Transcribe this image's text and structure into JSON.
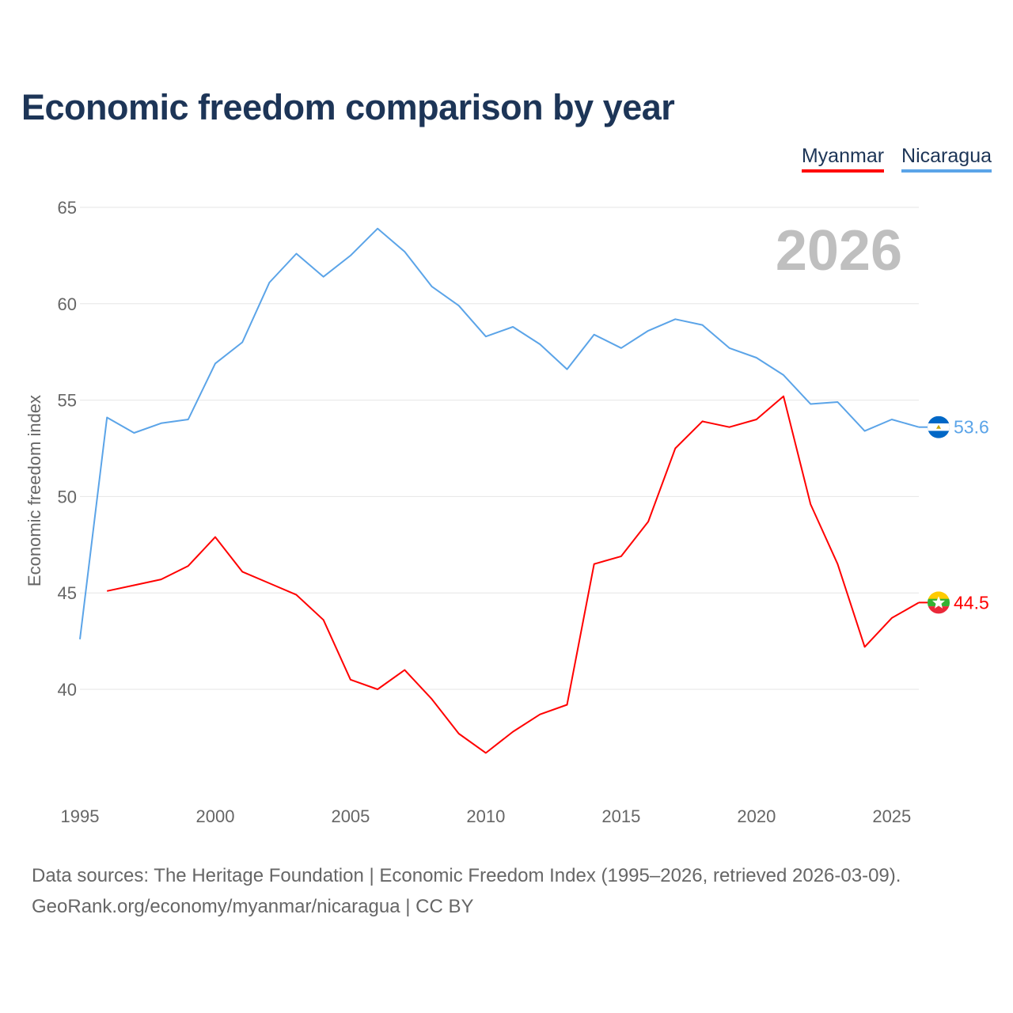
{
  "chart_data": {
    "type": "line",
    "title": "Economic freedom comparison by year",
    "xlabel": "",
    "ylabel": "Economic freedom index",
    "xlim": [
      1995,
      2026
    ],
    "ylim": [
      35,
      65
    ],
    "x_ticks": [
      1995,
      2000,
      2005,
      2010,
      2015,
      2020,
      2025
    ],
    "y_ticks": [
      40,
      45,
      50,
      55,
      60,
      65
    ],
    "grid": true,
    "legend_position": "top-right",
    "year_watermark": "2026",
    "series": [
      {
        "name": "Myanmar",
        "color": "#ff0000",
        "end_label": "44.5",
        "x": [
          1996,
          1997,
          1998,
          1999,
          2000,
          2001,
          2002,
          2003,
          2004,
          2005,
          2006,
          2007,
          2008,
          2009,
          2010,
          2011,
          2012,
          2013,
          2014,
          2015,
          2016,
          2017,
          2018,
          2019,
          2020,
          2021,
          2022,
          2023,
          2024,
          2025,
          2026
        ],
        "values": [
          45.1,
          45.4,
          45.7,
          46.4,
          47.9,
          46.1,
          45.5,
          44.9,
          43.6,
          40.5,
          40.0,
          41.0,
          39.5,
          37.7,
          36.7,
          37.8,
          38.7,
          39.2,
          46.5,
          46.9,
          48.7,
          52.5,
          53.9,
          53.6,
          54.0,
          55.2,
          49.6,
          46.5,
          42.2,
          43.7,
          44.5
        ]
      },
      {
        "name": "Nicaragua",
        "color": "#5ba4e8",
        "end_label": "53.6",
        "x": [
          1995,
          1996,
          1997,
          1998,
          1999,
          2000,
          2001,
          2002,
          2003,
          2004,
          2005,
          2006,
          2007,
          2008,
          2009,
          2010,
          2011,
          2012,
          2013,
          2014,
          2015,
          2016,
          2017,
          2018,
          2019,
          2020,
          2021,
          2022,
          2023,
          2024,
          2025,
          2026
        ],
        "values": [
          42.6,
          54.1,
          53.3,
          53.8,
          54.0,
          56.9,
          58.0,
          61.1,
          62.6,
          61.4,
          62.5,
          63.9,
          62.7,
          60.9,
          59.9,
          58.3,
          58.8,
          57.9,
          56.6,
          58.4,
          57.7,
          58.6,
          59.2,
          58.9,
          57.7,
          57.2,
          56.3,
          54.8,
          54.9,
          53.4,
          54.0,
          53.6
        ]
      }
    ]
  },
  "footer": {
    "line1": "Data sources: The Heritage Foundation | Economic Freedom Index (1995–2026, retrieved 2026-03-09).",
    "line2": "GeoRank.org/economy/myanmar/nicaragua | CC BY"
  }
}
